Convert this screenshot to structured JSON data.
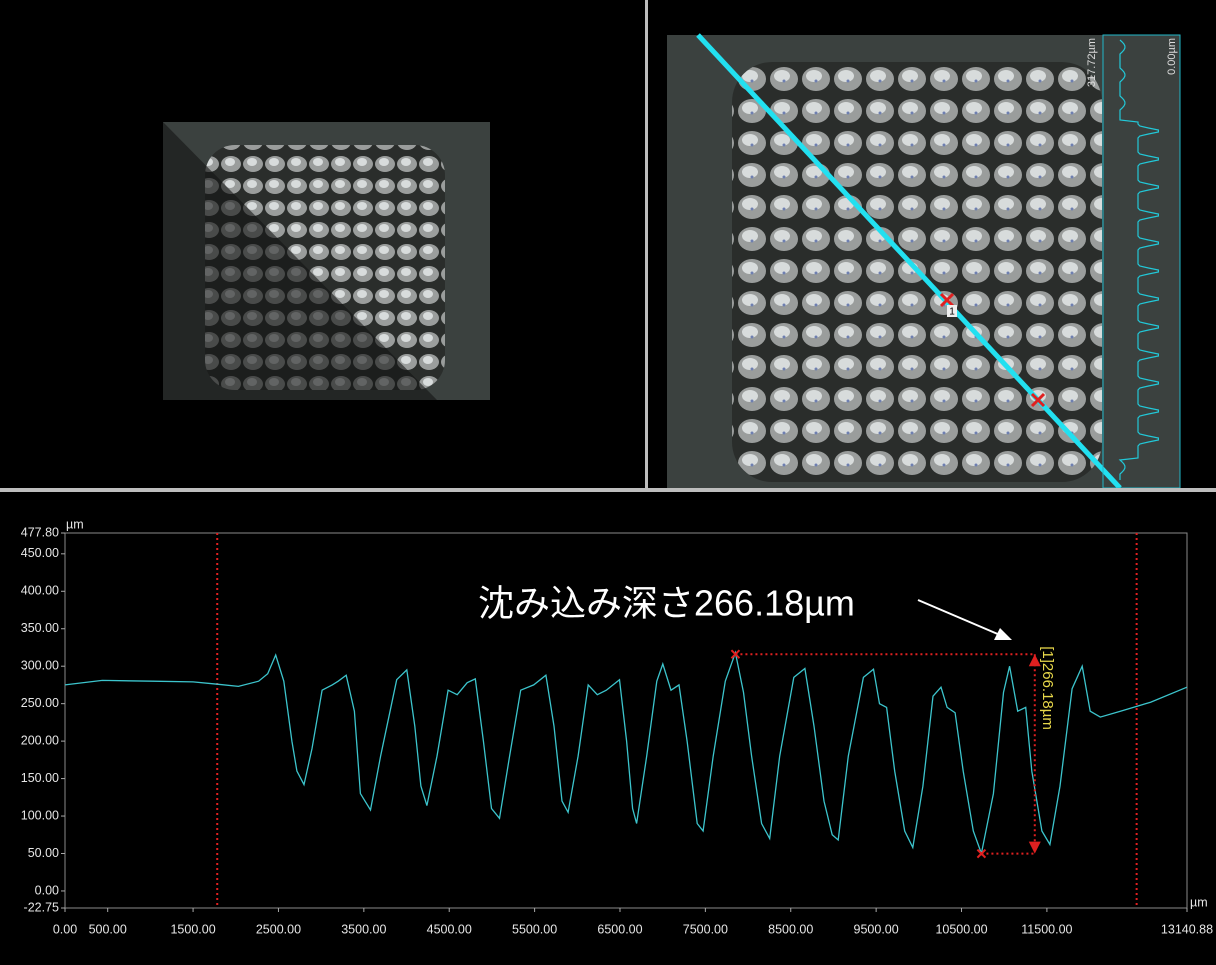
{
  "top_right": {
    "scale_max": "317.72µm",
    "scale_min": "0.00µm",
    "marker_label": "1"
  },
  "chart_data": {
    "type": "line",
    "y_unit": "µm",
    "x_unit": "µm",
    "annotation": "沈み込み深さ266.18µm",
    "measurement_label": "[1]266.18µm",
    "xlim": [
      0,
      13140.88
    ],
    "ylim": [
      -22.75,
      477.8
    ],
    "xticks": [
      {
        "value": 0,
        "label": "0.00"
      },
      {
        "value": 500,
        "label": "500.00"
      },
      {
        "value": 1500,
        "label": "1500.00"
      },
      {
        "value": 2500,
        "label": "2500.00"
      },
      {
        "value": 3500,
        "label": "3500.00"
      },
      {
        "value": 4500,
        "label": "4500.00"
      },
      {
        "value": 5500,
        "label": "5500.00"
      },
      {
        "value": 6500,
        "label": "6500.00"
      },
      {
        "value": 7500,
        "label": "7500.00"
      },
      {
        "value": 8500,
        "label": "8500.00"
      },
      {
        "value": 9500,
        "label": "9500.00"
      },
      {
        "value": 10500,
        "label": "10500.00"
      },
      {
        "value": 11500,
        "label": "11500.00"
      },
      {
        "value": 13140.88,
        "label": "13140.88"
      }
    ],
    "yticks": [
      {
        "value": -22.75,
        "label": "-22.75"
      },
      {
        "value": 0,
        "label": "0.00"
      },
      {
        "value": 50,
        "label": "50.00"
      },
      {
        "value": 100,
        "label": "100.00"
      },
      {
        "value": 150,
        "label": "150.00"
      },
      {
        "value": 200,
        "label": "200.00"
      },
      {
        "value": 250,
        "label": "250.00"
      },
      {
        "value": 300,
        "label": "300.00"
      },
      {
        "value": 350,
        "label": "350.00"
      },
      {
        "value": 400,
        "label": "400.00"
      },
      {
        "value": 450,
        "label": "450.00"
      },
      {
        "value": 477.8,
        "label": "477.80"
      }
    ],
    "x": [
      0,
      437,
      1028,
      1500,
      1783,
      2031,
      2267,
      2374,
      2468,
      2563,
      2657,
      2716,
      2799,
      2893,
      3011,
      3129,
      3200,
      3294,
      3389,
      3460,
      3578,
      3696,
      3885,
      4003,
      4097,
      4168,
      4239,
      4357,
      4487,
      4593,
      4711,
      4806,
      4900,
      4995,
      5089,
      5207,
      5337,
      5490,
      5632,
      5727,
      5821,
      5892,
      6010,
      6128,
      6234,
      6340,
      6494,
      6577,
      6648,
      6695,
      6813,
      6931,
      7002,
      7097,
      7191,
      7286,
      7404,
      7474,
      7592,
      7734,
      7852,
      7947,
      8041,
      8159,
      8253,
      8371,
      8536,
      8666,
      8772,
      8890,
      8985,
      9056,
      9174,
      9351,
      9469,
      9540,
      9623,
      9717,
      9835,
      9930,
      10048,
      10166,
      10260,
      10331,
      10425,
      10520,
      10638,
      10733,
      10874,
      10992,
      11063,
      11158,
      11252,
      11323,
      11441,
      11535,
      11653,
      11795,
      11913,
      12007,
      12125,
      12361,
      12715,
      13140
    ],
    "series": [
      {
        "color": "#3cc4cc",
        "values": [
          275,
          281,
          280,
          279,
          276,
          273,
          280,
          290,
          315,
          280,
          200,
          160,
          142,
          190,
          268,
          275,
          280,
          288,
          240,
          130,
          108,
          180,
          282,
          295,
          220,
          140,
          114,
          180,
          268,
          262,
          278,
          283,
          200,
          110,
          97,
          180,
          268,
          275,
          288,
          220,
          120,
          105,
          180,
          275,
          262,
          268,
          282,
          200,
          110,
          90,
          180,
          280,
          303,
          268,
          275,
          200,
          90,
          80,
          180,
          280,
          318,
          265,
          180,
          90,
          70,
          180,
          285,
          297,
          220,
          120,
          75,
          68,
          180,
          285,
          296,
          250,
          245,
          160,
          80,
          58,
          140,
          260,
          272,
          245,
          238,
          160,
          80,
          50,
          130,
          265,
          300,
          240,
          245,
          160,
          80,
          62,
          140,
          270,
          300,
          240,
          232,
          240,
          252,
          272
        ]
      }
    ],
    "cursors": [
      1783,
      12551
    ],
    "markers": {
      "x": [
        7852,
        10733
      ],
      "y": [
        316,
        49.82
      ],
      "color": "#e02020"
    },
    "measure_x": 11358
  }
}
